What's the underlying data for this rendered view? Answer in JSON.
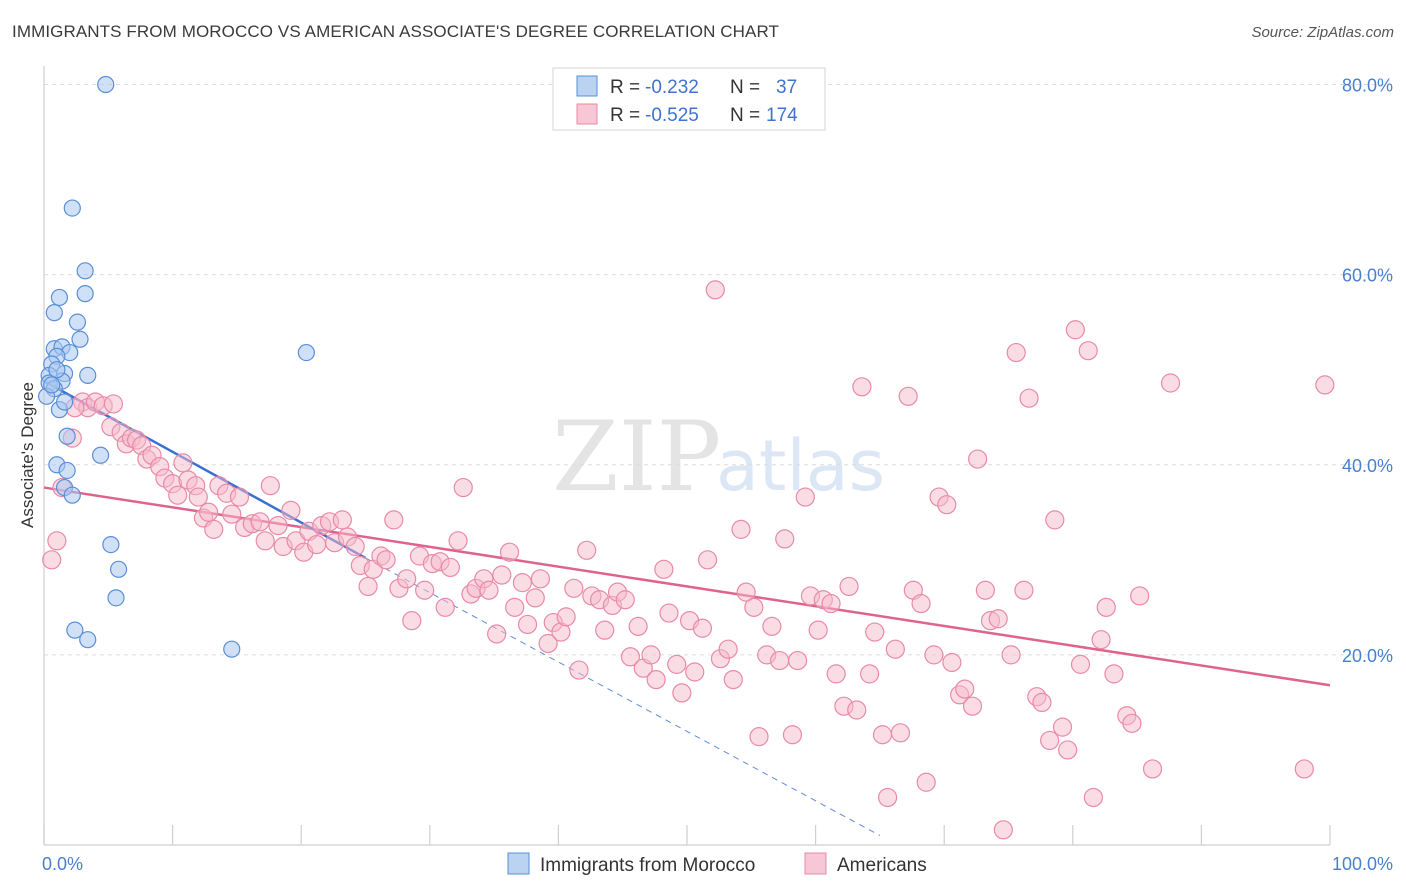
{
  "header": {
    "title": "IMMIGRANTS FROM MOROCCO VS AMERICAN ASSOCIATE'S DEGREE CORRELATION CHART",
    "source": "Source: ZipAtlas.com"
  },
  "watermark": {
    "zip": "ZIP",
    "atlas": "atlas"
  },
  "legend": {
    "r_label": "R =",
    "n_label": "N =",
    "rows": [
      {
        "r": "-0.232",
        "n": "37"
      },
      {
        "r": "-0.525",
        "n": "174"
      }
    ]
  },
  "colors": {
    "morocco_fill": "#a9c8f0",
    "morocco_stroke": "#5b8fd6",
    "morocco_line": "#3b6fd0",
    "americans_fill": "#f6b9cc",
    "americans_stroke": "#e98aa8",
    "americans_line": "#e0628f"
  },
  "chart_data": {
    "type": "scatter",
    "title": "IMMIGRANTS FROM MOROCCO VS AMERICAN ASSOCIATE'S DEGREE CORRELATION CHART",
    "xlabel": "",
    "ylabel": "Associate's Degree",
    "xlim": [
      0,
      100
    ],
    "ylim": [
      0,
      81
    ],
    "x_tick_labels": [
      "0.0%",
      "100.0%"
    ],
    "y_ticks": [
      20,
      40,
      60,
      80
    ],
    "y_tick_labels": [
      "20.0%",
      "40.0%",
      "60.0%",
      "80.0%"
    ],
    "grid": "horizontal dashed",
    "legend_position": "top-center",
    "series": [
      {
        "name": "Immigrants from Morocco",
        "r": -0.232,
        "n": 37,
        "trend": {
          "x": [
            0,
            25
          ],
          "y": [
            48.8,
            30.2
          ],
          "extended_to": [
            65,
            1.0
          ]
        },
        "points": [
          [
            4.8,
            80.0
          ],
          [
            2.2,
            67.0
          ],
          [
            3.2,
            60.4
          ],
          [
            1.2,
            57.6
          ],
          [
            3.2,
            58.0
          ],
          [
            0.8,
            56.0
          ],
          [
            2.6,
            55.0
          ],
          [
            0.8,
            52.2
          ],
          [
            2.8,
            53.2
          ],
          [
            1.4,
            52.4
          ],
          [
            2.0,
            51.8
          ],
          [
            1.0,
            51.4
          ],
          [
            0.6,
            50.6
          ],
          [
            1.6,
            49.6
          ],
          [
            0.4,
            49.4
          ],
          [
            3.4,
            49.4
          ],
          [
            1.4,
            48.8
          ],
          [
            0.4,
            48.6
          ],
          [
            0.8,
            48.0
          ],
          [
            0.2,
            47.2
          ],
          [
            1.2,
            45.8
          ],
          [
            1.6,
            46.6
          ],
          [
            1.8,
            43.0
          ],
          [
            4.4,
            41.0
          ],
          [
            1.0,
            40.0
          ],
          [
            1.8,
            39.4
          ],
          [
            1.6,
            37.6
          ],
          [
            2.2,
            36.8
          ],
          [
            5.2,
            31.6
          ],
          [
            5.8,
            29.0
          ],
          [
            5.6,
            26.0
          ],
          [
            2.4,
            22.6
          ],
          [
            3.4,
            21.6
          ],
          [
            14.6,
            20.6
          ],
          [
            20.4,
            51.8
          ],
          [
            0.6,
            48.4
          ],
          [
            1.0,
            50.0
          ]
        ]
      },
      {
        "name": "Americans",
        "r": -0.525,
        "n": 174,
        "trend": {
          "x": [
            0,
            100
          ],
          "y": [
            37.6,
            16.8
          ]
        },
        "points": [
          [
            0.6,
            30.0
          ],
          [
            1.0,
            32.0
          ],
          [
            1.4,
            37.6
          ],
          [
            2.2,
            42.8
          ],
          [
            3.0,
            46.6
          ],
          [
            3.4,
            46.0
          ],
          [
            2.4,
            46.0
          ],
          [
            4.0,
            46.6
          ],
          [
            4.6,
            46.2
          ],
          [
            5.4,
            46.4
          ],
          [
            5.2,
            44.0
          ],
          [
            6.0,
            43.4
          ],
          [
            6.4,
            42.2
          ],
          [
            6.8,
            42.8
          ],
          [
            7.2,
            42.6
          ],
          [
            7.6,
            42.0
          ],
          [
            8.0,
            40.6
          ],
          [
            8.4,
            41.0
          ],
          [
            9.0,
            39.8
          ],
          [
            9.4,
            38.6
          ],
          [
            10.0,
            38.0
          ],
          [
            10.4,
            36.8
          ],
          [
            10.8,
            40.2
          ],
          [
            11.2,
            38.4
          ],
          [
            11.8,
            37.8
          ],
          [
            12.0,
            36.6
          ],
          [
            12.4,
            34.4
          ],
          [
            12.8,
            35.0
          ],
          [
            13.2,
            33.2
          ],
          [
            13.6,
            37.8
          ],
          [
            14.2,
            37.0
          ],
          [
            14.6,
            34.8
          ],
          [
            15.2,
            36.6
          ],
          [
            15.6,
            33.4
          ],
          [
            16.2,
            33.8
          ],
          [
            16.8,
            34.0
          ],
          [
            17.2,
            32.0
          ],
          [
            17.6,
            37.8
          ],
          [
            18.2,
            33.6
          ],
          [
            18.6,
            31.4
          ],
          [
            19.2,
            35.2
          ],
          [
            19.6,
            32.0
          ],
          [
            20.2,
            30.8
          ],
          [
            20.6,
            33.0
          ],
          [
            21.2,
            31.6
          ],
          [
            21.6,
            33.6
          ],
          [
            22.2,
            34.0
          ],
          [
            22.6,
            31.8
          ],
          [
            23.2,
            34.2
          ],
          [
            23.6,
            32.4
          ],
          [
            24.2,
            31.4
          ],
          [
            24.6,
            29.4
          ],
          [
            25.2,
            27.2
          ],
          [
            25.6,
            29.0
          ],
          [
            26.2,
            30.4
          ],
          [
            26.6,
            30.0
          ],
          [
            27.2,
            34.2
          ],
          [
            27.6,
            27.0
          ],
          [
            28.2,
            28.0
          ],
          [
            28.6,
            23.6
          ],
          [
            29.2,
            30.4
          ],
          [
            29.6,
            26.8
          ],
          [
            30.2,
            29.6
          ],
          [
            30.8,
            29.8
          ],
          [
            31.2,
            25.0
          ],
          [
            31.6,
            29.2
          ],
          [
            32.2,
            32.0
          ],
          [
            32.6,
            37.6
          ],
          [
            33.2,
            26.4
          ],
          [
            33.6,
            27.0
          ],
          [
            34.2,
            28.0
          ],
          [
            34.6,
            26.8
          ],
          [
            35.2,
            22.2
          ],
          [
            35.6,
            28.4
          ],
          [
            36.2,
            30.8
          ],
          [
            36.6,
            25.0
          ],
          [
            37.2,
            27.6
          ],
          [
            37.6,
            23.2
          ],
          [
            38.2,
            26.0
          ],
          [
            38.6,
            28.0
          ],
          [
            39.2,
            21.2
          ],
          [
            39.6,
            23.4
          ],
          [
            40.2,
            22.4
          ],
          [
            40.6,
            24.0
          ],
          [
            41.2,
            27.0
          ],
          [
            41.6,
            18.4
          ],
          [
            42.2,
            31.0
          ],
          [
            42.6,
            26.2
          ],
          [
            43.2,
            25.8
          ],
          [
            43.6,
            22.6
          ],
          [
            44.2,
            25.2
          ],
          [
            44.6,
            26.6
          ],
          [
            45.2,
            25.8
          ],
          [
            45.6,
            19.8
          ],
          [
            46.2,
            23.0
          ],
          [
            46.6,
            18.6
          ],
          [
            47.2,
            20.0
          ],
          [
            47.6,
            17.4
          ],
          [
            48.2,
            29.0
          ],
          [
            48.6,
            24.4
          ],
          [
            49.2,
            19.0
          ],
          [
            49.6,
            16.0
          ],
          [
            50.2,
            23.6
          ],
          [
            50.6,
            18.2
          ],
          [
            51.2,
            22.8
          ],
          [
            51.6,
            30.0
          ],
          [
            52.2,
            58.4
          ],
          [
            52.6,
            19.6
          ],
          [
            53.2,
            20.6
          ],
          [
            53.6,
            17.4
          ],
          [
            54.2,
            33.2
          ],
          [
            54.6,
            26.6
          ],
          [
            55.2,
            25.0
          ],
          [
            55.6,
            11.4
          ],
          [
            56.2,
            20.0
          ],
          [
            56.6,
            23.0
          ],
          [
            57.2,
            19.4
          ],
          [
            57.6,
            32.2
          ],
          [
            58.2,
            11.6
          ],
          [
            58.6,
            19.4
          ],
          [
            59.2,
            36.6
          ],
          [
            59.6,
            26.2
          ],
          [
            60.2,
            22.6
          ],
          [
            60.6,
            25.8
          ],
          [
            61.2,
            25.4
          ],
          [
            61.6,
            18.0
          ],
          [
            62.2,
            14.6
          ],
          [
            62.6,
            27.2
          ],
          [
            63.2,
            14.2
          ],
          [
            63.6,
            48.2
          ],
          [
            64.2,
            18.0
          ],
          [
            64.6,
            22.4
          ],
          [
            65.2,
            11.6
          ],
          [
            65.6,
            5.0
          ],
          [
            66.2,
            20.6
          ],
          [
            66.6,
            11.8
          ],
          [
            67.2,
            47.2
          ],
          [
            67.6,
            26.8
          ],
          [
            68.2,
            25.4
          ],
          [
            68.6,
            6.6
          ],
          [
            69.2,
            20.0
          ],
          [
            69.6,
            36.6
          ],
          [
            70.2,
            35.8
          ],
          [
            70.6,
            19.2
          ],
          [
            71.2,
            15.8
          ],
          [
            71.6,
            16.4
          ],
          [
            72.2,
            14.6
          ],
          [
            72.6,
            40.6
          ],
          [
            73.2,
            26.8
          ],
          [
            73.6,
            23.6
          ],
          [
            74.2,
            23.8
          ],
          [
            74.6,
            1.6
          ],
          [
            75.2,
            20.0
          ],
          [
            75.6,
            51.8
          ],
          [
            76.2,
            26.8
          ],
          [
            76.6,
            47.0
          ],
          [
            77.2,
            15.6
          ],
          [
            77.6,
            15.0
          ],
          [
            78.2,
            11.0
          ],
          [
            78.6,
            34.2
          ],
          [
            79.2,
            12.4
          ],
          [
            79.6,
            10.0
          ],
          [
            80.2,
            54.2
          ],
          [
            80.6,
            19.0
          ],
          [
            81.2,
            52.0
          ],
          [
            81.6,
            5.0
          ],
          [
            82.2,
            21.6
          ],
          [
            82.6,
            25.0
          ],
          [
            83.2,
            18.0
          ],
          [
            84.2,
            13.6
          ],
          [
            84.6,
            12.8
          ],
          [
            85.2,
            26.2
          ],
          [
            86.2,
            8.0
          ],
          [
            87.6,
            48.6
          ],
          [
            98.0,
            8.0
          ],
          [
            99.6,
            48.4
          ]
        ]
      }
    ]
  },
  "bottom_legend": [
    {
      "label": "Immigrants from Morocco"
    },
    {
      "label": "Americans"
    }
  ]
}
